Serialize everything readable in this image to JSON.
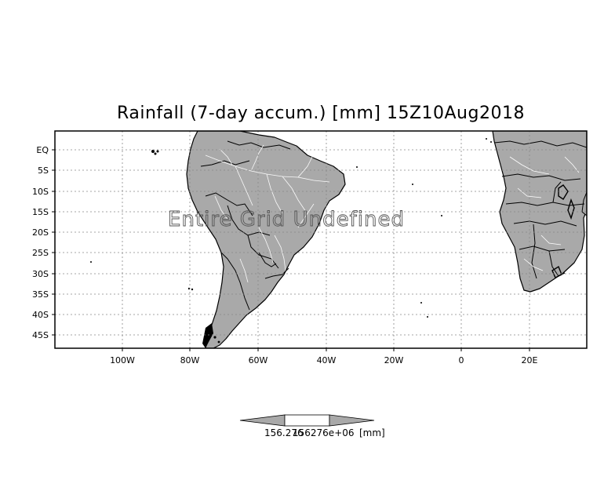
{
  "title": "Rainfall (7-day accum.) [mm] 15Z10Aug2018",
  "message": "Entire Grid Undefined",
  "y_ticks": [
    "EQ",
    "5S",
    "10S",
    "15S",
    "20S",
    "25S",
    "30S",
    "35S",
    "40S",
    "45S"
  ],
  "x_ticks": [
    "100W",
    "80W",
    "60W",
    "40W",
    "20W",
    "0",
    "20E"
  ],
  "colorbar": {
    "label_left": "156.276",
    "label_center": "156276e+06",
    "units": "[mm]"
  },
  "colors": {
    "land": "#a9a9a9",
    "ocean": "#ffffff",
    "border": "#000000",
    "grid": "#888888",
    "rivers": "#ffffff"
  }
}
